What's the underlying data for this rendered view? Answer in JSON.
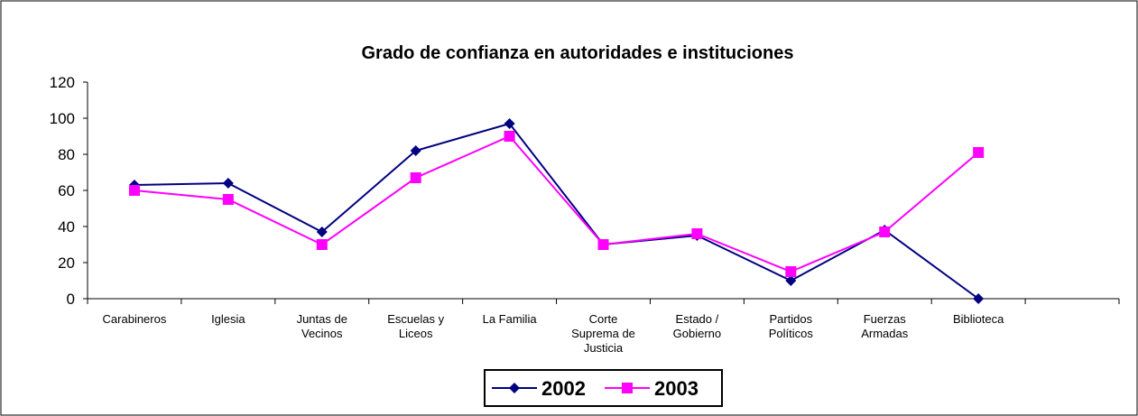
{
  "chart_data": {
    "type": "line",
    "title": "Grado de confianza en autoridades e instituciones",
    "categories": [
      "Carabineros",
      "Iglesia",
      "Juntas de Vecinos",
      "Escuelas y Liceos",
      "La Familia",
      "Corte Suprema de Justicia",
      "Estado / Gobierno",
      "Partidos Políticos",
      "Fuerzas Armadas",
      "Biblioteca",
      null
    ],
    "series": [
      {
        "name": "2002",
        "color": "#000080",
        "marker": "diamond",
        "values": [
          63,
          64,
          37,
          82,
          97,
          30,
          35,
          10,
          38,
          0,
          null
        ]
      },
      {
        "name": "2003",
        "color": "#ff00ff",
        "marker": "square",
        "values": [
          60,
          55,
          30,
          67,
          90,
          30,
          36,
          15,
          37,
          81,
          null
        ]
      }
    ],
    "ylim": [
      0,
      120
    ],
    "yticks": [
      0,
      20,
      40,
      60,
      80,
      100,
      120
    ],
    "grid": false,
    "legend": "bottom"
  }
}
